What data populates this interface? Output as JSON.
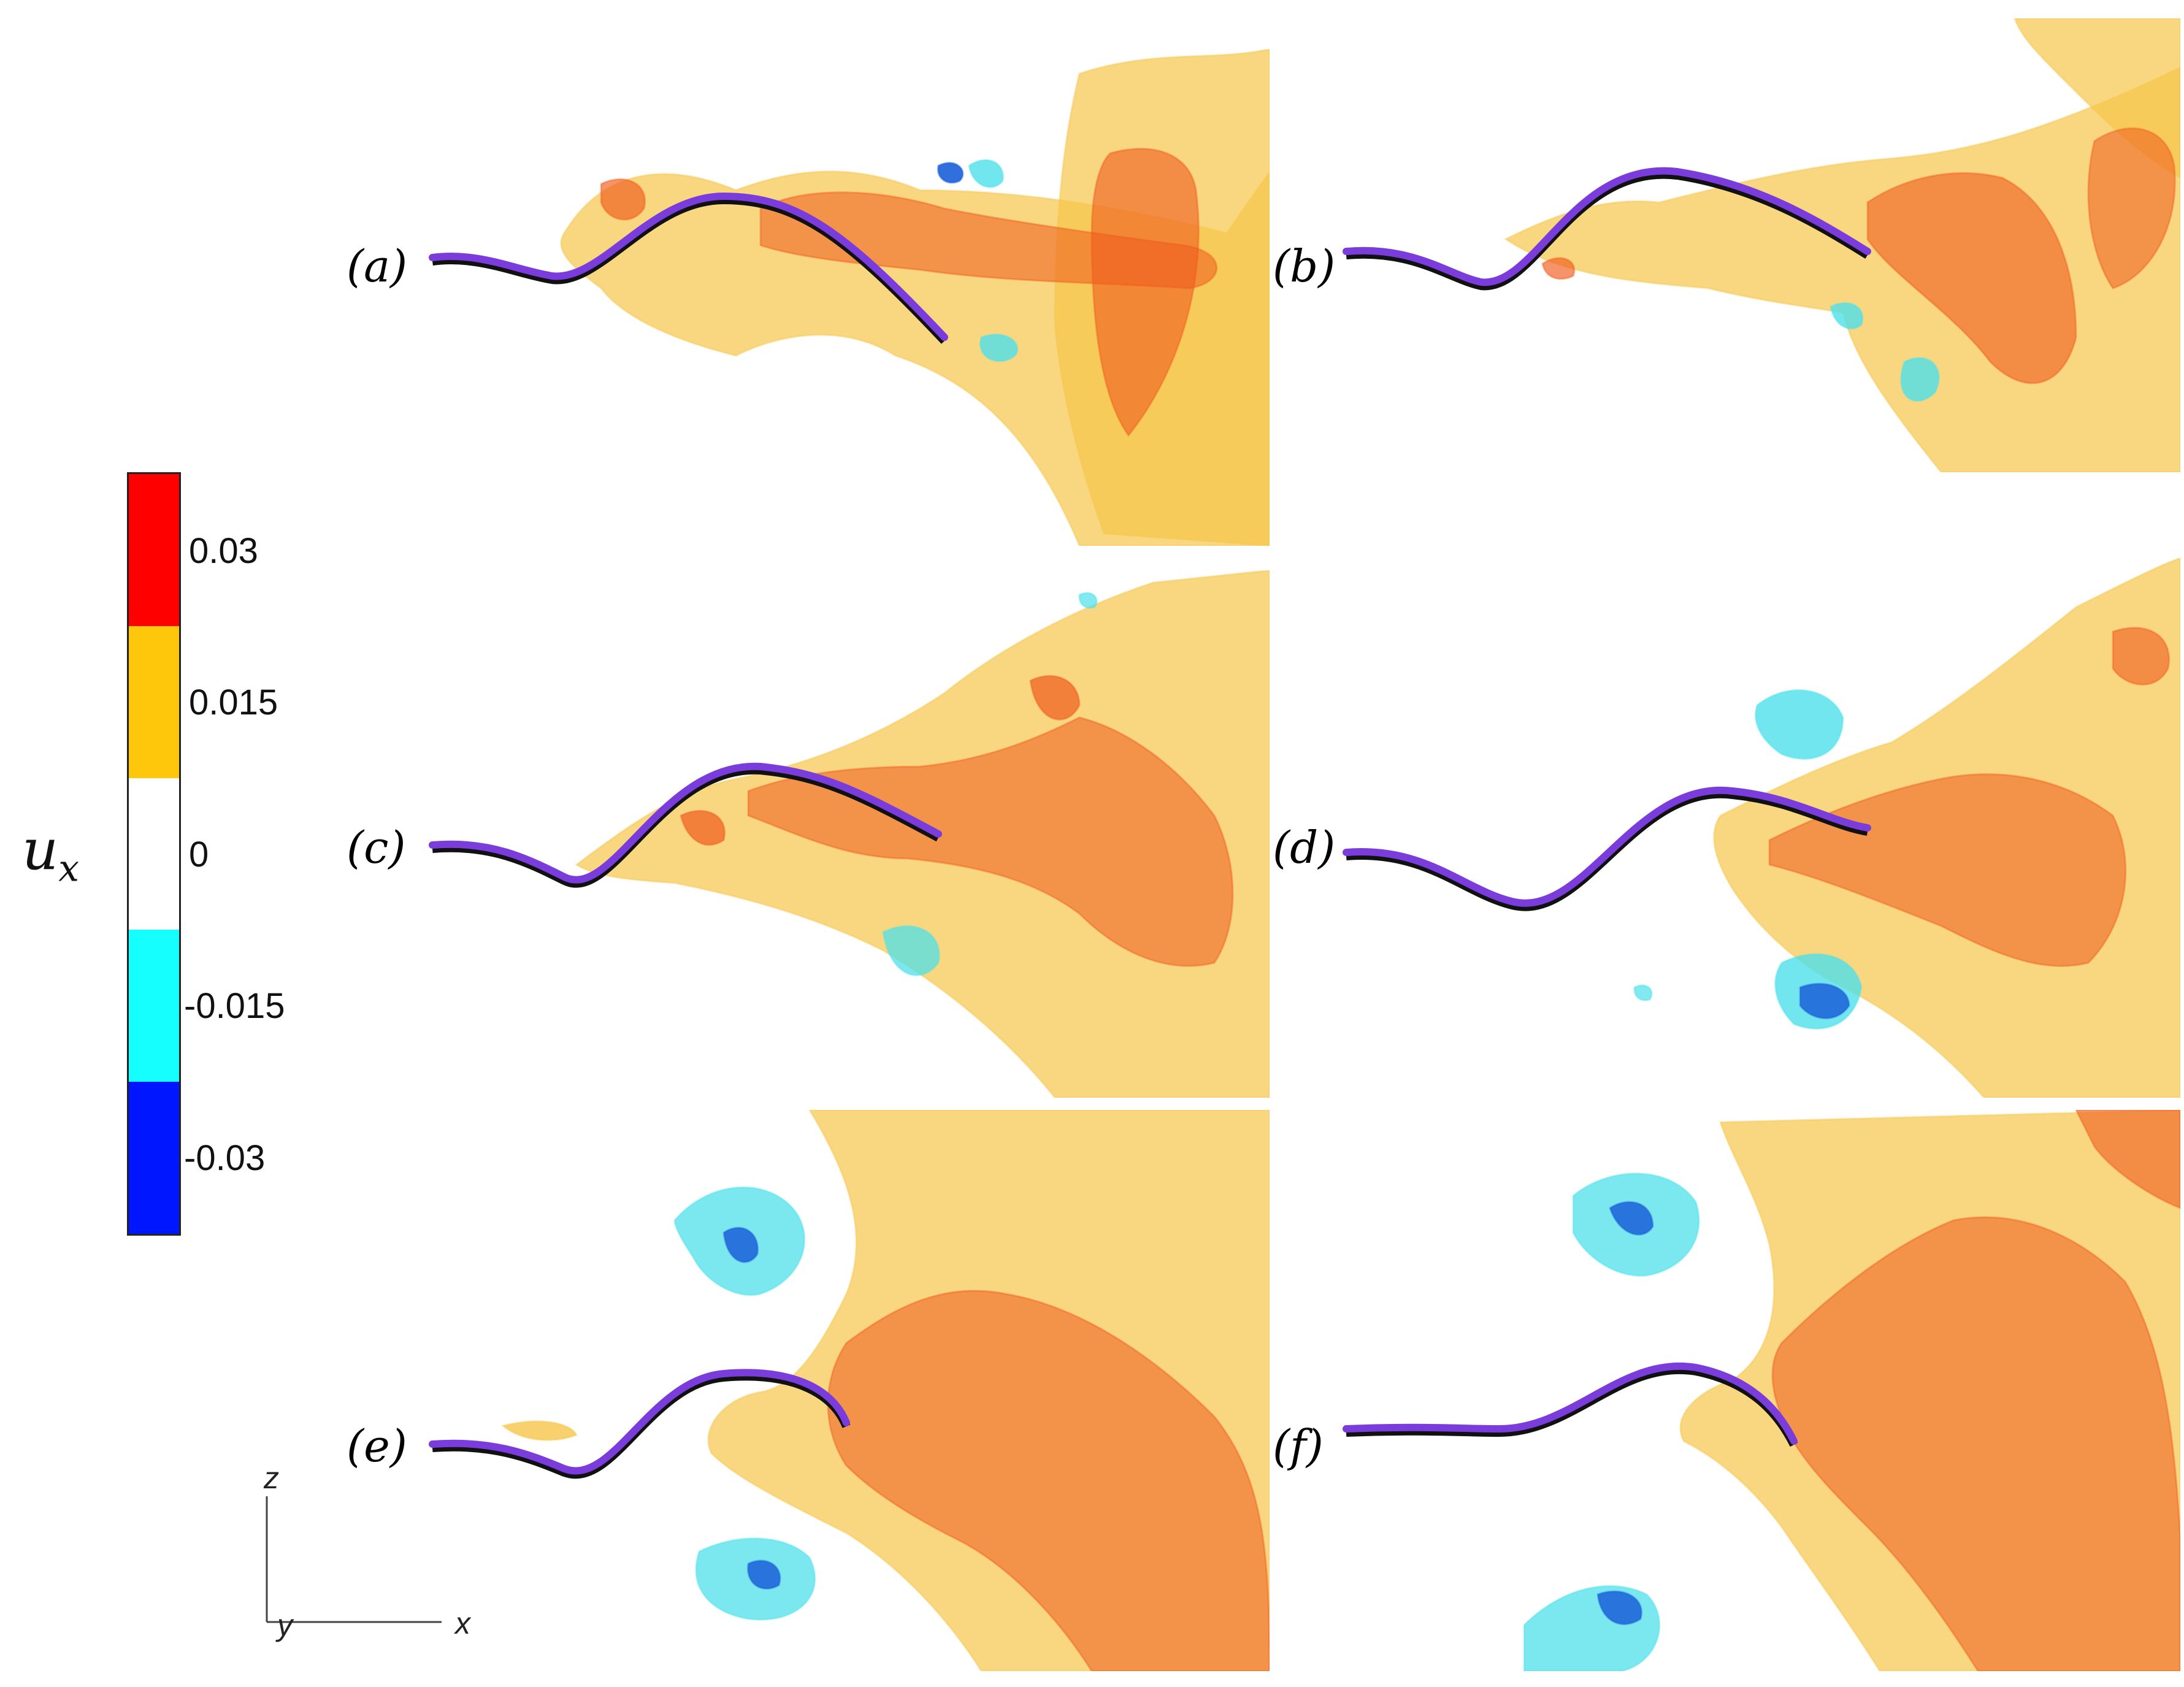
{
  "colorbar": {
    "title_base": "u",
    "title_sub": "x",
    "segment_colors": [
      "#ff0000",
      "#ffc70c",
      "#ffffff",
      "#15ffff",
      "#0016ff"
    ],
    "ticks": [
      "0.03",
      "0.015",
      "0",
      "-0.015",
      "-0.03"
    ]
  },
  "panels": [
    {
      "label": "(a)"
    },
    {
      "label": "(b)"
    },
    {
      "label": "(c)"
    },
    {
      "label": "(d)"
    },
    {
      "label": "(e)"
    },
    {
      "label": "(f)"
    }
  ],
  "axes_triad": {
    "z": "z",
    "y": "y",
    "x": "x"
  },
  "colors": {
    "positive_low": "#f6c64a",
    "positive_high": "#ef5a1c",
    "negative_low": "#4fe0ea",
    "negative_high": "#1a5fd8",
    "body": "#7a3ddc"
  }
}
